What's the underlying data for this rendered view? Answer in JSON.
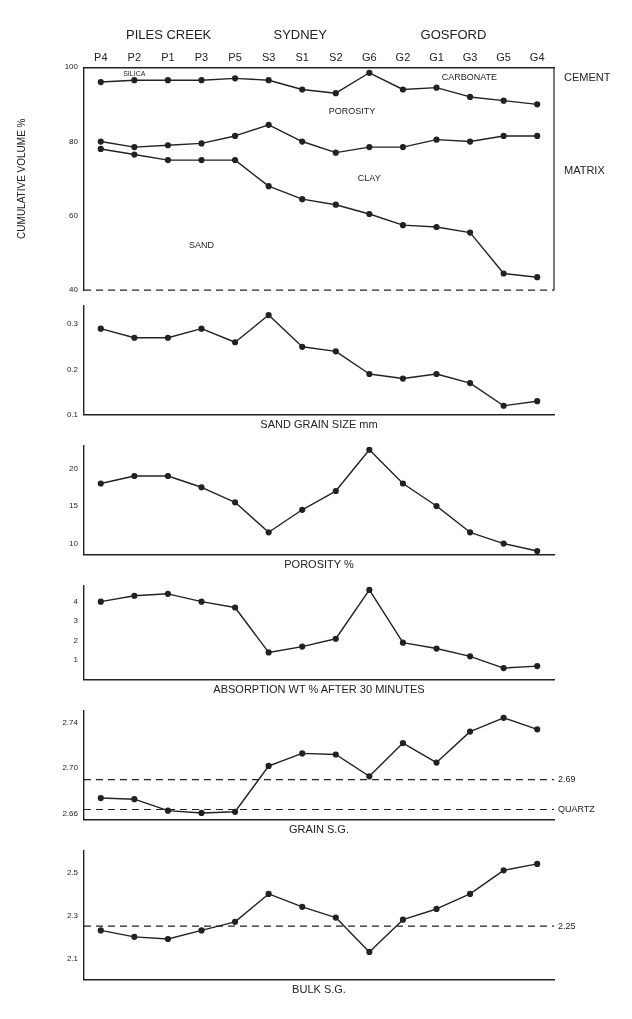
{
  "chart_data": [
    {
      "type": "line",
      "ylabel": "CUMULATIVE VOLUME %",
      "categories": [
        "P4",
        "P2",
        "P1",
        "P3",
        "P5",
        "S3",
        "S1",
        "S2",
        "G6",
        "G2",
        "G1",
        "G3",
        "G5",
        "G4"
      ],
      "ylim": [
        40,
        100
      ],
      "yticks": [
        40,
        60,
        80,
        100
      ],
      "marker": "circle",
      "line_style": "solid",
      "series": [
        {
          "color": "#222222",
          "values": [
            78,
            76.5,
            75,
            75,
            75,
            68,
            64.5,
            63,
            60.5,
            57.5,
            57,
            55.5,
            44.5,
            43.5
          ]
        },
        {
          "color": "#222222",
          "values": [
            80,
            78.5,
            79,
            79.5,
            81.5,
            84.5,
            80,
            77,
            78.5,
            78.5,
            80.5,
            80,
            81.5,
            81.5
          ]
        },
        {
          "color": "#222222",
          "values": [
            96,
            96.5,
            96.5,
            96.5,
            97,
            96.5,
            94,
            93,
            98.5,
            94,
            94.5,
            92,
            91,
            90
          ]
        }
      ],
      "ref_lines": [
        {
          "axis": "y",
          "value": 40,
          "line_style": "dashed"
        }
      ],
      "annotations": [
        "PILES CREEK",
        "SYDNEY",
        "GOSFORD",
        "SILICA",
        "CARBONATE",
        "POROSITY",
        "CLAY",
        "SAND",
        "CEMENT",
        "MATRIX"
      ]
    },
    {
      "type": "line",
      "xlabel": "SAND GRAIN SIZE mm",
      "categories": [
        null,
        null,
        null,
        null,
        null,
        null,
        null,
        null,
        null,
        null,
        null,
        null,
        null,
        null
      ],
      "tick_labels": "y",
      "ylim": [
        0.1,
        0.34
      ],
      "yticks": [
        0.1,
        0.2,
        0.3
      ],
      "marker": "circle",
      "line_style": "solid",
      "color": "#222222",
      "values": [
        0.29,
        0.27,
        0.27,
        0.29,
        0.26,
        0.32,
        0.25,
        0.24,
        0.19,
        0.18,
        0.19,
        0.17,
        0.12,
        0.13
      ]
    },
    {
      "type": "line",
      "xlabel": "POROSITY %",
      "categories": [
        null,
        null,
        null,
        null,
        null,
        null,
        null,
        null,
        null,
        null,
        null,
        null,
        null,
        null
      ],
      "tick_labels": "y",
      "ylim": [
        8.5,
        23
      ],
      "yticks": [
        10,
        15,
        20
      ],
      "marker": "circle",
      "line_style": "solid",
      "color": "#222222",
      "values": [
        18,
        19,
        19,
        17.5,
        15.5,
        11.5,
        14.5,
        17,
        22.5,
        18,
        15,
        11.5,
        10,
        9
      ]
    },
    {
      "type": "line",
      "xlabel": "ABSORPTION WT % AFTER 30 MINUTES",
      "categories": [
        null,
        null,
        null,
        null,
        null,
        null,
        null,
        null,
        null,
        null,
        null,
        null,
        null,
        null
      ],
      "tick_labels": "y",
      "ylim": [
        0,
        4.8
      ],
      "yticks": [
        1,
        2,
        3,
        4
      ],
      "marker": "circle",
      "line_style": "solid",
      "color": "#222222",
      "values": [
        4,
        4.3,
        4.4,
        4,
        3.7,
        1.4,
        1.7,
        2.1,
        4.6,
        1.9,
        1.6,
        1.2,
        0.6,
        0.7
      ]
    },
    {
      "type": "line",
      "xlabel": "GRAIN S.G.",
      "categories": [
        null,
        null,
        null,
        null,
        null,
        null,
        null,
        null,
        null,
        null,
        null,
        null,
        null,
        null
      ],
      "tick_labels": "y",
      "ylim": [
        2.655,
        2.75
      ],
      "yticks": [
        2.66,
        {
          "value": 2.7,
          "label": "2.70"
        },
        2.74
      ],
      "marker": "circle",
      "line_style": "solid",
      "color": "#222222",
      "values": [
        2.674,
        2.673,
        2.663,
        2.661,
        2.662,
        2.702,
        2.713,
        2.712,
        2.693,
        2.722,
        2.705,
        2.732,
        2.744,
        2.734
      ],
      "ref_lines": [
        {
          "axis": "y",
          "value": 2.69,
          "label": "2.69",
          "line_style": "dashed"
        },
        {
          "axis": "y",
          "value": 2.664,
          "label": "QUARTZ",
          "line_style": "dashed"
        }
      ]
    },
    {
      "type": "line",
      "xlabel": "BULK S.G.",
      "categories": [
        null,
        null,
        null,
        null,
        null,
        null,
        null,
        null,
        null,
        null,
        null,
        null,
        null,
        null
      ],
      "tick_labels": "y",
      "ylim": [
        2.0,
        2.6
      ],
      "yticks": [
        2.1,
        2.3,
        2.5
      ],
      "marker": "circle",
      "line_style": "solid",
      "color": "#222222",
      "values": [
        2.23,
        2.2,
        2.19,
        2.23,
        2.27,
        2.4,
        2.34,
        2.29,
        2.13,
        2.28,
        2.33,
        2.4,
        2.51,
        2.54
      ],
      "ref_lines": [
        {
          "axis": "y",
          "value": 2.25,
          "label": "2.25",
          "line_style": "dashed"
        }
      ]
    }
  ]
}
